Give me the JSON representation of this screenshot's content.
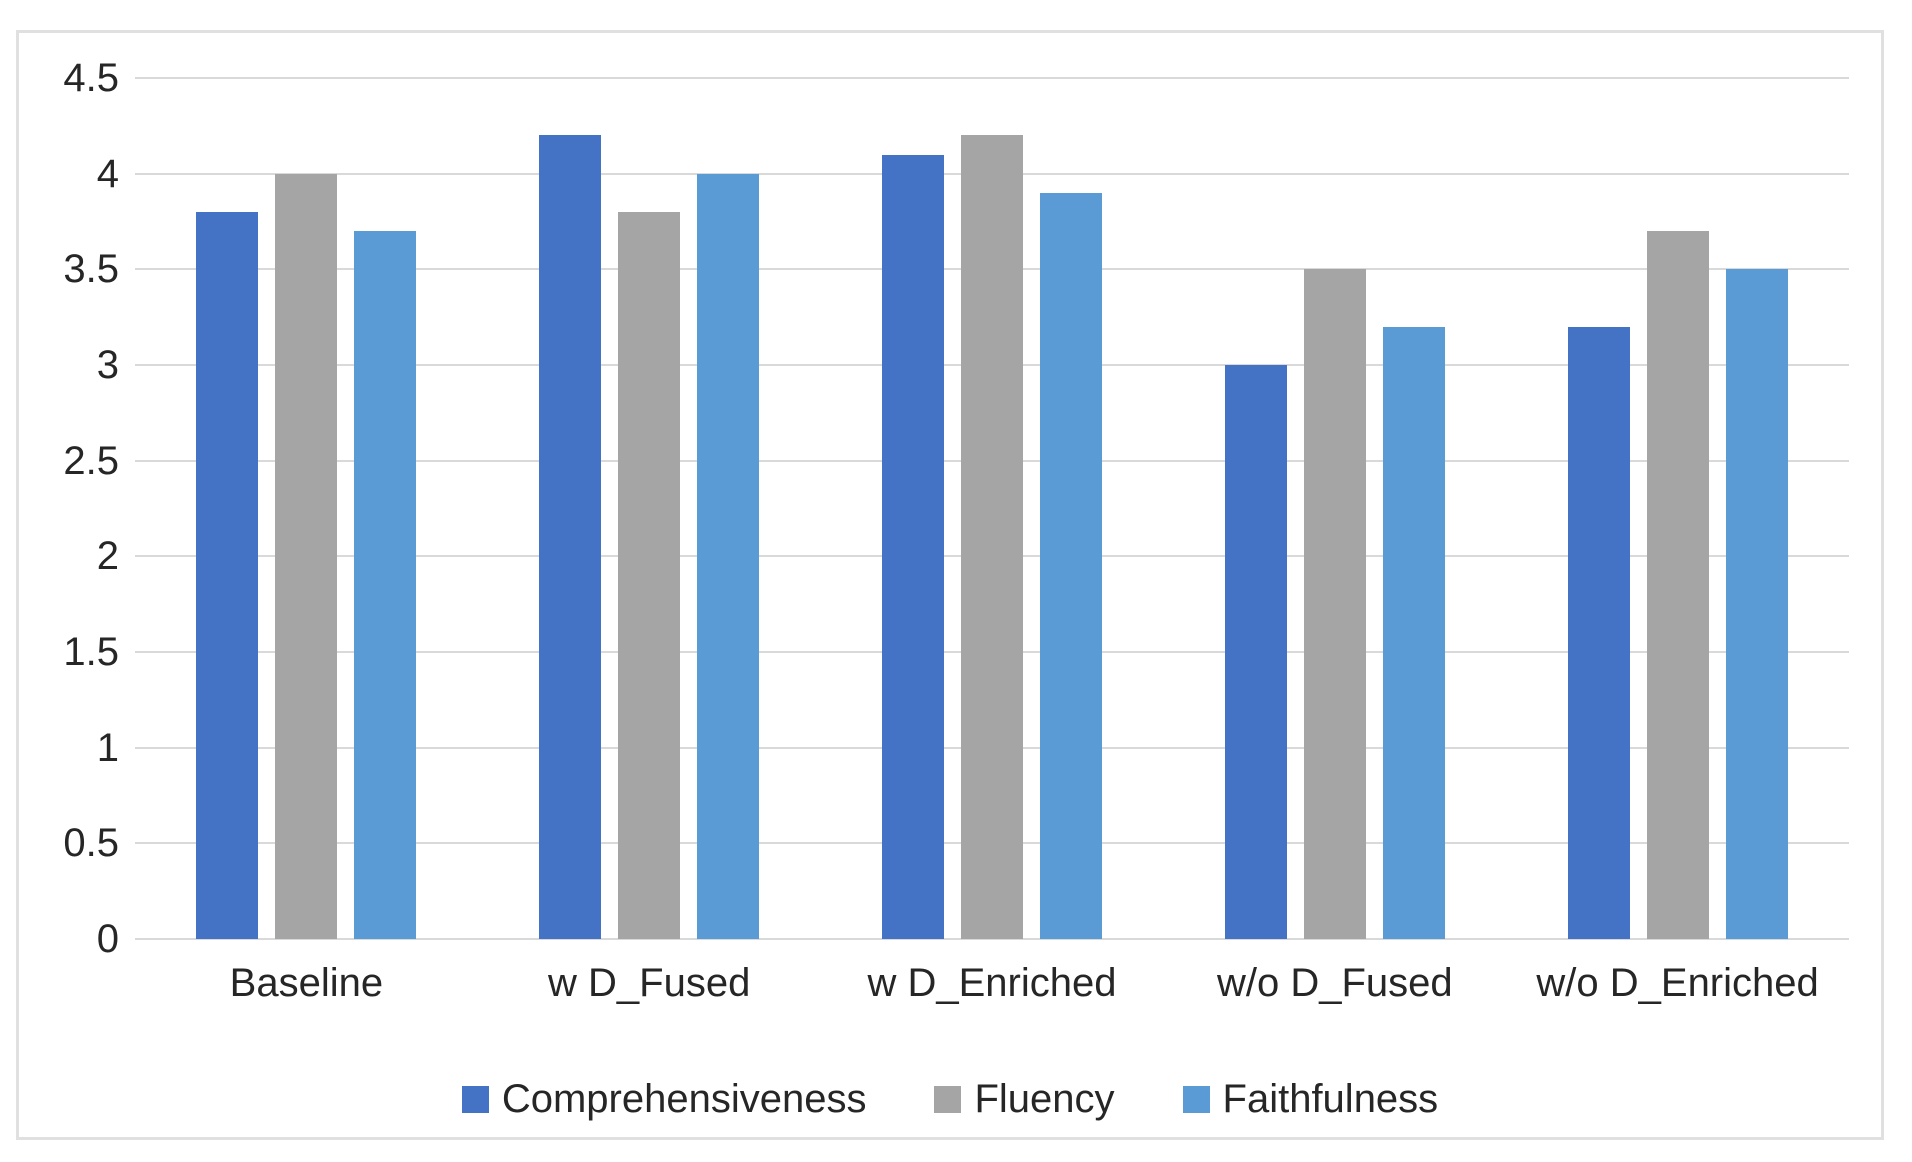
{
  "chart_data": {
    "type": "bar",
    "title": "",
    "xlabel": "",
    "ylabel": "",
    "categories": [
      "Baseline",
      "w D_Fused",
      "w D_Enriched",
      "w/o D_Fused",
      "w/o D_Enriched"
    ],
    "series": [
      {
        "name": "Comprehensiveness",
        "color": "#4472C4",
        "values": [
          3.8,
          4.2,
          4.1,
          3.0,
          3.2
        ]
      },
      {
        "name": "Fluency",
        "color": "#A5A5A5",
        "values": [
          4.0,
          3.8,
          4.2,
          3.5,
          3.7
        ]
      },
      {
        "name": "Faithfulness",
        "color": "#5B9BD5",
        "values": [
          3.7,
          4.0,
          3.9,
          3.2,
          3.5
        ]
      }
    ],
    "ylim": [
      0,
      4.5
    ],
    "yticks": [
      0,
      0.5,
      1,
      1.5,
      2,
      2.5,
      3,
      3.5,
      4,
      4.5
    ],
    "ytick_labels": [
      "0",
      "0.5",
      "1",
      "1.5",
      "2",
      "2.5",
      "3",
      "3.5",
      "4",
      "4.5"
    ],
    "grid": true,
    "legend_position": "bottom"
  },
  "colors": {
    "background": "#FFFFFF",
    "gridline": "#D9D9D9",
    "frame_border": "#E0E0E0",
    "text": "#262626"
  }
}
